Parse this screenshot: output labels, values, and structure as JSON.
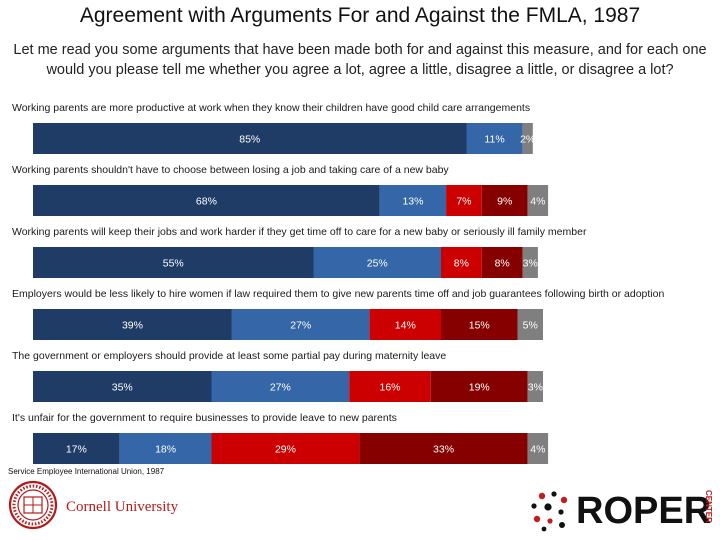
{
  "header": {
    "title": "Agreement with Arguments For and Against the FMLA, 1987",
    "subtitle": "Let me read you some arguments that have been made both for and against this measure, and for each one would you please tell me whether you agree a lot, agree a little, disagree a little, or disagree a lot?"
  },
  "footer": {
    "source": "Service Employee International Union, 1987",
    "cornell_name": "Cornell University",
    "cornell_seal_text": "CORNELL UNIVERSITY FOUNDED A.D. 1865",
    "roper_name": "ROPER",
    "roper_center": "CENTER"
  },
  "colors": {
    "agree_a_lot": "#1f3c66",
    "agree_a_little": "#3566a8",
    "disagree_a_little": "#cc0000",
    "disagree_a_lot": "#860000",
    "other": "#7f7f7f"
  },
  "chart_data": {
    "type": "bar",
    "orientation": "horizontal",
    "stacked": true,
    "xlim": [
      0,
      100
    ],
    "categories": [
      "Working parents are more productive at work when they know their children have good child care arrangements",
      "Working parents shouldn't have to choose between losing a job and taking care of a new baby",
      "Working parents will keep their jobs and work harder if they get time off to care for a new baby or seriously ill family member",
      "Employers would be less likely to hire women if law required them to give new parents time off and job guarantees following birth or adoption",
      "The government or employers should provide at least some partial pay during maternity leave",
      "It's unfair for the government to require businesses to provide leave to new parents"
    ],
    "series": [
      {
        "key": "agree_a_lot",
        "values": [
          85,
          68,
          55,
          39,
          35,
          17
        ],
        "labels": [
          "85%",
          "68%",
          "55%",
          "39%",
          "35%",
          "17%"
        ]
      },
      {
        "key": "agree_a_little",
        "values": [
          11,
          13,
          25,
          27,
          27,
          18
        ],
        "labels": [
          "11%",
          "13%",
          "25%",
          "27%",
          "27%",
          "18%"
        ]
      },
      {
        "key": "disagree_a_little",
        "values": [
          0,
          7,
          8,
          14,
          16,
          29
        ],
        "labels": [
          "",
          "7%",
          "8%",
          "14%",
          "16%",
          "29%"
        ]
      },
      {
        "key": "disagree_a_lot",
        "values": [
          0,
          9,
          8,
          15,
          19,
          33
        ],
        "labels": [
          "",
          "9%",
          "8%",
          "15%",
          "19%",
          "33%"
        ]
      },
      {
        "key": "other",
        "values": [
          2,
          4,
          3,
          5,
          3,
          4
        ],
        "labels": [
          "2%",
          "4%",
          "3%",
          "5%",
          "3%",
          "4%"
        ]
      }
    ]
  }
}
